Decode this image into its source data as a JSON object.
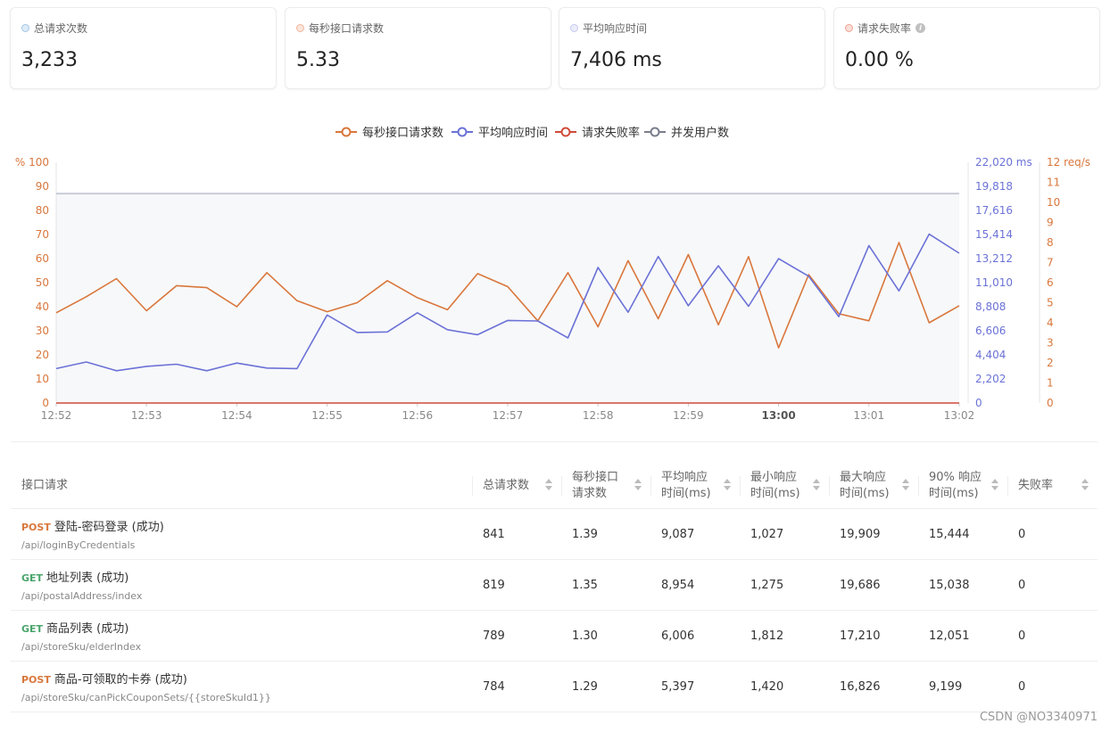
{
  "summary_cards": [
    {
      "label": "总请求次数",
      "value": "3,233",
      "dot_color": "#9ec7e8"
    },
    {
      "label": "每秒接口请求数",
      "value": "5.33",
      "dot_color": "#f0b49a"
    },
    {
      "label": "平均响应时间",
      "value": "7,406 ms",
      "dot_color": "#c6c8f0"
    },
    {
      "label": "请求失败率",
      "value": "0.00 %",
      "dot_color": "#f0a090",
      "info_icon": "info-icon"
    }
  ],
  "chart_data": {
    "type": "line",
    "legend": [
      {
        "name": "每秒接口请求数",
        "color": "#d9773c"
      },
      {
        "name": "平均响应时间",
        "color": "#6b72d6"
      },
      {
        "name": "请求失败率",
        "color": "#d04a3a"
      },
      {
        "name": "并发用户数",
        "color": "#7a7d8c"
      }
    ],
    "legend_position": "top-center",
    "x_ticks": [
      "12:52",
      "12:53",
      "12:54",
      "12:55",
      "12:56",
      "12:57",
      "12:58",
      "12:59",
      "13:00",
      "13:01",
      "13:02"
    ],
    "x_ticks_bold": "13:00",
    "left_axis": {
      "unit_label": "%",
      "ticks": [
        "100",
        "90",
        "80",
        "70",
        "60",
        "50",
        "40",
        "30",
        "20",
        "10",
        "0"
      ],
      "range": [
        0,
        100
      ],
      "color": "#d9773c"
    },
    "right_axis_1": {
      "ticks": [
        "22,020 ms",
        "19,818",
        "17,616",
        "15,414",
        "13,212",
        "11,010",
        "8,808",
        "6,606",
        "4,404",
        "2,202",
        "0"
      ],
      "range": [
        0,
        22020
      ],
      "color": "#6b72d6"
    },
    "right_axis_2": {
      "ticks": [
        "12 req/s",
        "11",
        "10",
        "9",
        "8",
        "7",
        "6",
        "5",
        "4",
        "3",
        "2",
        "1",
        "0"
      ],
      "range": [
        0,
        12
      ],
      "color": "#d9773c"
    },
    "series": [
      {
        "name": "每秒接口请求数",
        "axis": "right_axis_2",
        "color": "#d9773c",
        "values": [
          4.5,
          5.3,
          6.2,
          4.6,
          5.85,
          5.75,
          4.8,
          6.5,
          5.1,
          4.55,
          5.0,
          6.1,
          5.25,
          4.65,
          6.45,
          5.8,
          4.1,
          6.5,
          3.8,
          7.1,
          4.2,
          7.4,
          3.9,
          7.3,
          2.75,
          6.4,
          4.45,
          4.1,
          8.0,
          4.0,
          4.85
        ],
        "x_start": "12:52",
        "x_end": "13:02"
      },
      {
        "name": "平均响应时间",
        "axis": "right_axis_1",
        "color": "#6b72d6",
        "values": [
          3150,
          3750,
          2950,
          3350,
          3550,
          2950,
          3650,
          3200,
          3150,
          8050,
          6450,
          6500,
          8250,
          6700,
          6250,
          7550,
          7500,
          5950,
          12400,
          8300,
          13400,
          8900,
          12550,
          8850,
          13200,
          11600,
          7900,
          14400,
          10250,
          15450,
          13700
        ],
        "x_start": "12:52",
        "x_end": "13:02"
      },
      {
        "name": "请求失败率",
        "axis": "left_axis",
        "color": "#d04a3a",
        "values": [
          0,
          0
        ],
        "x_start": "12:52",
        "x_end": "13:02"
      },
      {
        "name": "并发用户数",
        "axis": "left_axis",
        "color": "#c9ccd8",
        "values": [
          87,
          87
        ],
        "x_start": "12:52",
        "x_end": "13:02"
      }
    ]
  },
  "table": {
    "headers": [
      {
        "label": "接口请求",
        "sortable": false
      },
      {
        "label": "总请求数",
        "sortable": true
      },
      {
        "label": "每秒接口\n请求数",
        "sortable": true
      },
      {
        "label": "平均响应\n时间(ms)",
        "sortable": true
      },
      {
        "label": "最小响应\n时间(ms)",
        "sortable": true
      },
      {
        "label": "最大响应\n时间(ms)",
        "sortable": true
      },
      {
        "label": "90% 响应\n时间(ms)",
        "sortable": true
      },
      {
        "label": "失败率",
        "sortable": true
      }
    ],
    "rows": [
      {
        "method": "POST",
        "name": "登陆-密码登录 (成功)",
        "path": "/api/loginByCredentials",
        "cells": [
          "841",
          "1.39",
          "9,087",
          "1,027",
          "19,909",
          "15,444",
          "0"
        ]
      },
      {
        "method": "GET",
        "name": "地址列表 (成功)",
        "path": "/api/postalAddress/index",
        "cells": [
          "819",
          "1.35",
          "8,954",
          "1,275",
          "19,686",
          "15,038",
          "0"
        ]
      },
      {
        "method": "GET",
        "name": "商品列表 (成功)",
        "path": "/api/storeSku/elderIndex",
        "cells": [
          "789",
          "1.30",
          "6,006",
          "1,812",
          "17,210",
          "12,051",
          "0"
        ]
      },
      {
        "method": "POST",
        "name": "商品-可领取的卡券 (成功)",
        "path": "/api/storeSku/canPickCouponSets/{{storeSkuId1}}",
        "cells": [
          "784",
          "1.29",
          "5,397",
          "1,420",
          "16,826",
          "9,199",
          "0"
        ]
      }
    ]
  },
  "watermark": "CSDN @NO3340971"
}
